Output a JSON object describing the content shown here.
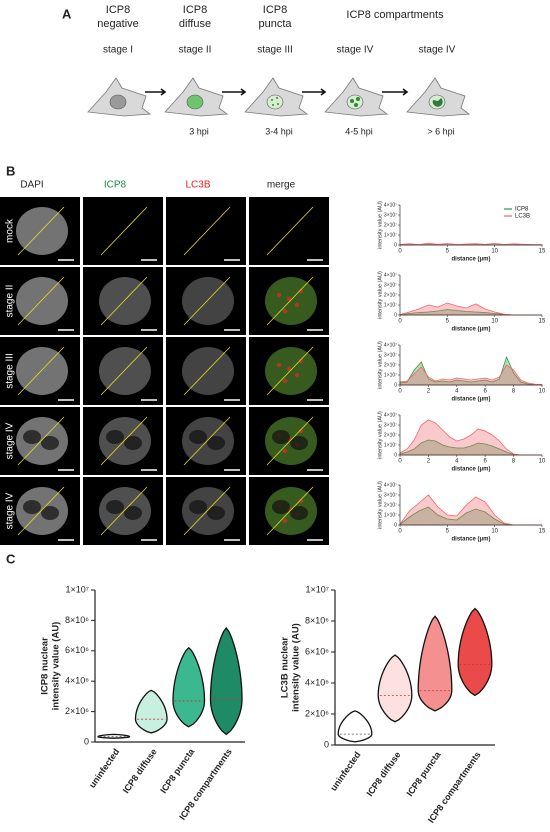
{
  "panel_a": {
    "label": "A",
    "group_title": "ICP8 compartments",
    "stages": [
      {
        "title": [
          "ICP8",
          "negative"
        ],
        "stage": "stage I"
      },
      {
        "title": [
          "ICP8",
          "diffuse"
        ],
        "stage": "stage II",
        "time": "3 hpi"
      },
      {
        "title": [
          "ICP8",
          "puncta"
        ],
        "stage": "stage III",
        "time": "3-4 hpi"
      },
      {
        "stage": "stage IV",
        "time": "4-5 hpi"
      },
      {
        "stage": "stage IV",
        "time": "> 6 hpi"
      }
    ]
  },
  "panel_b": {
    "label": "B",
    "columns": [
      {
        "name": "DAPI",
        "color": "#222222"
      },
      {
        "name": "ICP8",
        "color": "#1a8a3a"
      },
      {
        "name": "LC3B",
        "color": "#e02020"
      },
      {
        "name": "merge",
        "color": "#222222"
      }
    ],
    "rows": [
      "mock",
      "stage II",
      "stage III",
      "stage IV",
      "stage IV"
    ]
  },
  "chart_data": [
    {
      "type": "area",
      "xlabel": "distance (μm)",
      "ylabel": "intensity value (AU)",
      "legend": "top-right",
      "xlim": [
        0,
        15
      ],
      "xticks": [
        0,
        5,
        10,
        15
      ],
      "ylim": [
        0,
        40000000.0
      ],
      "yticks": [
        0,
        {
          "value": 10000000.0,
          "label": "1×10⁷"
        },
        {
          "value": 20000000.0,
          "label": "2×10⁷"
        },
        {
          "value": 30000000.0,
          "label": "3×10⁷"
        },
        {
          "value": 40000000.0,
          "label": "4×10⁷"
        }
      ],
      "x": [
        0,
        1,
        2,
        3,
        4,
        5,
        6,
        7,
        8,
        9,
        10,
        11,
        12,
        13,
        14,
        15
      ],
      "series": [
        {
          "name": "ICP8",
          "color": "#2e9a3e",
          "values": [
            200000.0,
            300000.0,
            200000.0,
            400000.0,
            300000.0,
            200000.0,
            300000.0,
            200000.0,
            400000.0,
            300000.0,
            200000.0,
            300000.0,
            200000.0,
            300000.0,
            200000.0,
            200000.0
          ]
        },
        {
          "name": "LC3B",
          "color": "#f0646e",
          "values": [
            500000.0,
            1200000.0,
            400000.0,
            1800000.0,
            600000.0,
            1500000.0,
            500000.0,
            1000000.0,
            1400000.0,
            600000.0,
            1600000.0,
            500000.0,
            1200000.0,
            700000.0,
            400000.0,
            300000.0
          ]
        }
      ]
    },
    {
      "type": "area",
      "xlabel": "distance (μm)",
      "ylabel": "intensity value (AU)",
      "xlim": [
        0,
        15
      ],
      "xticks": [
        0,
        5,
        10,
        15
      ],
      "ylim": [
        0,
        40000000.0
      ],
      "yticks": [
        0,
        {
          "value": 10000000.0,
          "label": "1×10⁷"
        },
        {
          "value": 20000000.0,
          "label": "2×10⁷"
        },
        {
          "value": 30000000.0,
          "label": "3×10⁷"
        },
        {
          "value": 40000000.0,
          "label": "4×10⁷"
        }
      ],
      "x": [
        0,
        1,
        2,
        3,
        4,
        5,
        6,
        7,
        8,
        9,
        10,
        11,
        12,
        13,
        14,
        15
      ],
      "series": [
        {
          "name": "ICP8",
          "color": "#2e9a3e",
          "values": [
            300000.0,
            1500000.0,
            2500000.0,
            3000000.0,
            4000000.0,
            5500000.0,
            4500000.0,
            3500000.0,
            3000000.0,
            2500000.0,
            1500000.0,
            500000.0,
            0,
            0,
            0,
            0
          ]
        },
        {
          "name": "LC3B",
          "color": "#f0646e",
          "values": [
            500000.0,
            3000000.0,
            6000000.0,
            10000000.0,
            8000000.0,
            12000000.0,
            9000000.0,
            7000000.0,
            11000000.0,
            6000000.0,
            3000000.0,
            800000.0,
            0,
            0,
            0,
            0
          ]
        }
      ]
    },
    {
      "type": "area",
      "xlabel": "distance (μm)",
      "ylabel": "intensity value (AU)",
      "xlim": [
        0,
        10
      ],
      "xticks": [
        0,
        2,
        4,
        6,
        8,
        10
      ],
      "ylim": [
        0,
        40000000.0
      ],
      "yticks": [
        0,
        {
          "value": 10000000.0,
          "label": "1×10⁷"
        },
        {
          "value": 20000000.0,
          "label": "2×10⁷"
        },
        {
          "value": 30000000.0,
          "label": "3×10⁷"
        },
        {
          "value": 40000000.0,
          "label": "4×10⁷"
        }
      ],
      "x": [
        0,
        0.5,
        1,
        1.5,
        2,
        2.5,
        3,
        3.5,
        4,
        4.5,
        5,
        5.5,
        6,
        6.5,
        7,
        7.5,
        8,
        8.5,
        9,
        9.5,
        10
      ],
      "series": [
        {
          "name": "ICP8",
          "color": "#2e9a3e",
          "values": [
            2000000.0,
            3000000.0,
            15000000.0,
            23000000.0,
            6000000.0,
            3000000.0,
            4000000.0,
            3000000.0,
            5000000.0,
            4000000.0,
            3000000.0,
            4000000.0,
            5000000.0,
            3000000.0,
            6000000.0,
            28000000.0,
            12000000.0,
            3000000.0,
            1000000.0,
            500000.0,
            300000.0
          ]
        },
        {
          "name": "LC3B",
          "color": "#f0646e",
          "values": [
            3000000.0,
            4000000.0,
            11000000.0,
            18000000.0,
            8000000.0,
            4000000.0,
            6000000.0,
            5000000.0,
            7000000.0,
            6000000.0,
            5000000.0,
            6000000.0,
            7000000.0,
            5000000.0,
            8000000.0,
            20000000.0,
            15000000.0,
            5000000.0,
            2000000.0,
            800000.0,
            500000.0
          ]
        }
      ]
    },
    {
      "type": "area",
      "xlabel": "distance (μm)",
      "ylabel": "intensity value (AU)",
      "xlim": [
        0,
        10
      ],
      "xticks": [
        0,
        2,
        4,
        6,
        8,
        10
      ],
      "ylim": [
        0,
        40000000.0
      ],
      "yticks": [
        0,
        {
          "value": 10000000.0,
          "label": "1×10⁷"
        },
        {
          "value": 20000000.0,
          "label": "2×10⁷"
        },
        {
          "value": 30000000.0,
          "label": "3×10⁷"
        },
        {
          "value": 40000000.0,
          "label": "4×10⁷"
        }
      ],
      "x": [
        0,
        0.5,
        1,
        1.5,
        2,
        2.5,
        3,
        3.5,
        4,
        4.5,
        5,
        5.5,
        6,
        6.5,
        7,
        7.5,
        8,
        8.5,
        9,
        9.5,
        10
      ],
      "series": [
        {
          "name": "ICP8",
          "color": "#2e9a3e",
          "values": [
            1000000.0,
            3000000.0,
            6000000.0,
            12000000.0,
            15000000.0,
            14000000.0,
            10000000.0,
            8000000.0,
            7000000.0,
            7000000.0,
            9000000.0,
            12000000.0,
            11000000.0,
            9000000.0,
            6000000.0,
            3000000.0,
            500000.0,
            0,
            0,
            0,
            0
          ]
        },
        {
          "name": "LC3B",
          "color": "#f0646e",
          "values": [
            2000000.0,
            6000000.0,
            15000000.0,
            30000000.0,
            35000000.0,
            32000000.0,
            25000000.0,
            18000000.0,
            14000000.0,
            16000000.0,
            20000000.0,
            26000000.0,
            24000000.0,
            20000000.0,
            14000000.0,
            6000000.0,
            1000000.0,
            0,
            0,
            0,
            0
          ]
        }
      ]
    },
    {
      "type": "area",
      "xlabel": "distance (μm)",
      "ylabel": "intensity value (AU)",
      "xlim": [
        0,
        15
      ],
      "xticks": [
        0,
        5,
        10,
        15
      ],
      "ylim": [
        0,
        40000000.0
      ],
      "yticks": [
        0,
        {
          "value": 10000000.0,
          "label": "1×10⁷"
        },
        {
          "value": 20000000.0,
          "label": "2×10⁷"
        },
        {
          "value": 30000000.0,
          "label": "3×10⁷"
        },
        {
          "value": 40000000.0,
          "label": "4×10⁷"
        }
      ],
      "x": [
        0,
        1,
        2,
        3,
        4,
        5,
        6,
        7,
        8,
        9,
        10,
        11,
        12,
        13,
        14,
        15
      ],
      "series": [
        {
          "name": "ICP8",
          "color": "#2e9a3e",
          "values": [
            500000.0,
            8000000.0,
            14000000.0,
            18000000.0,
            10000000.0,
            6000000.0,
            5000000.0,
            12000000.0,
            16000000.0,
            13000000.0,
            6000000.0,
            1000000.0,
            0,
            0,
            0,
            0
          ]
        },
        {
          "name": "LC3B",
          "color": "#f0646e",
          "values": [
            1000000.0,
            14000000.0,
            22000000.0,
            30000000.0,
            18000000.0,
            10000000.0,
            9000000.0,
            20000000.0,
            28000000.0,
            23000000.0,
            10000000.0,
            2000000.0,
            0,
            0,
            0,
            0
          ]
        }
      ]
    },
    {
      "type": "violin",
      "panel": "C",
      "ylabel": [
        "ICP8 nuclear",
        "intensity value (AU)"
      ],
      "ylim": [
        0,
        10000000.0
      ],
      "yticks": [
        0,
        {
          "value": 2000000.0,
          "label": "2×10⁶"
        },
        {
          "value": 4000000.0,
          "label": "4×10⁶"
        },
        {
          "value": 6000000.0,
          "label": "6×10⁶"
        },
        {
          "value": 8000000.0,
          "label": "8×10⁶"
        },
        {
          "value": 10000000.0,
          "label": "1×10⁷"
        }
      ],
      "categories": [
        "uninfected",
        "ICP8 diffuse",
        "ICP8 puncta",
        "ICP8 compartments"
      ],
      "colors": [
        "#ffffff",
        "#c8f0e0",
        "#3cb890",
        "#1f8a66"
      ],
      "min": [
        250000.0,
        600000.0,
        1000000.0,
        500000.0
      ],
      "median": [
        350000.0,
        1500000.0,
        2700000.0,
        2800000.0
      ],
      "max": [
        500000.0,
        3400000.0,
        6200000.0,
        7500000.0
      ]
    },
    {
      "type": "violin",
      "ylabel": [
        "LC3B nuclear",
        "intensity value (AU)"
      ],
      "ylim": [
        0,
        10000000.0
      ],
      "yticks": [
        0,
        {
          "value": 2000000.0,
          "label": "2×10⁶"
        },
        {
          "value": 4000000.0,
          "label": "4×10⁶"
        },
        {
          "value": 6000000.0,
          "label": "6×10⁶"
        },
        {
          "value": 8000000.0,
          "label": "8×10⁶"
        },
        {
          "value": 10000000.0,
          "label": "1×10⁷"
        }
      ],
      "categories": [
        "uninfected",
        "ICP8 diffuse",
        "ICP8 puncta",
        "ICP8 compartments"
      ],
      "colors": [
        "#ffffff",
        "#fde0e0",
        "#f49090",
        "#ea4a4a"
      ],
      "min": [
        200000.0,
        1500000.0,
        2200000.0,
        3200000.0
      ],
      "median": [
        700000.0,
        3200000.0,
        3500000.0,
        5200000.0
      ],
      "max": [
        2200000.0,
        5800000.0,
        8300000.0,
        8800000.0
      ]
    }
  ]
}
